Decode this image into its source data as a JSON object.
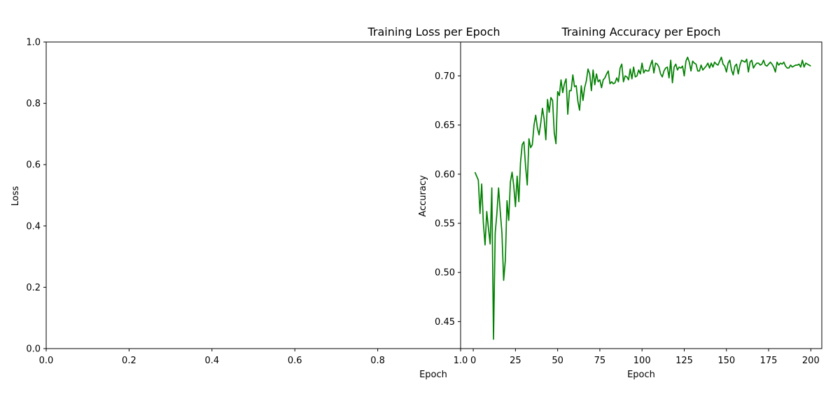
{
  "chart_data": [
    {
      "type": "line",
      "title": "Training Loss per Epoch",
      "xlabel": "Epoch",
      "ylabel": "Loss",
      "xlim": [
        0,
        1
      ],
      "ylim": [
        0,
        1
      ],
      "xticks": [
        "0.0",
        "0.2",
        "0.4",
        "0.6",
        "0.8",
        "1.0"
      ],
      "yticks": [
        "0.0",
        "0.2",
        "0.4",
        "0.6",
        "0.8",
        "1.0"
      ],
      "series": [],
      "grid": false
    },
    {
      "type": "line",
      "title": "Training Accuracy per Epoch",
      "xlabel": "Epoch",
      "ylabel": "Accuracy",
      "xlim": [
        -7.5,
        206.5
      ],
      "ylim": [
        0.4225,
        0.7345
      ],
      "xticks": [
        "0",
        "25",
        "50",
        "75",
        "100",
        "125",
        "150",
        "175",
        "200"
      ],
      "yticks": [
        "0.45",
        "0.50",
        "0.55",
        "0.60",
        "0.65",
        "0.70"
      ],
      "grid": false,
      "series": [
        {
          "color": "#008000",
          "x": [
            1,
            2,
            3,
            4,
            5,
            6,
            7,
            8,
            9,
            10,
            11,
            12,
            13,
            14,
            15,
            16,
            17,
            18,
            19,
            20,
            21,
            22,
            23,
            24,
            25,
            26,
            27,
            28,
            29,
            30,
            31,
            32,
            33,
            34,
            35,
            36,
            37,
            38,
            39,
            40,
            41,
            42,
            43,
            44,
            45,
            46,
            47,
            48,
            49,
            50,
            51,
            52,
            53,
            54,
            55,
            56,
            57,
            58,
            59,
            60,
            61,
            62,
            63,
            64,
            65,
            66,
            67,
            68,
            69,
            70,
            71,
            72,
            73,
            74,
            75,
            76,
            77,
            78,
            79,
            80,
            81,
            82,
            83,
            84,
            85,
            86,
            87,
            88,
            89,
            90,
            91,
            92,
            93,
            94,
            95,
            96,
            97,
            98,
            99,
            100,
            101,
            102,
            103,
            104,
            105,
            106,
            107,
            108,
            109,
            110,
            111,
            112,
            113,
            114,
            115,
            116,
            117,
            118,
            119,
            120,
            121,
            122,
            123,
            124,
            125,
            126,
            127,
            128,
            129,
            130,
            131,
            132,
            133,
            134,
            135,
            136,
            137,
            138,
            139,
            140,
            141,
            142,
            143,
            144,
            145,
            146,
            147,
            148,
            149,
            150,
            151,
            152,
            153,
            154,
            155,
            156,
            157,
            158,
            159,
            160,
            161,
            162,
            163,
            164,
            165,
            166,
            167,
            168,
            169,
            170,
            171,
            172,
            173,
            174,
            175,
            176,
            177,
            178,
            179,
            180,
            181,
            182,
            183,
            184,
            185,
            186,
            187,
            188,
            189,
            190,
            191,
            192,
            193,
            194,
            195,
            196,
            197,
            198,
            199,
            200
          ],
          "y": [
            0.602,
            0.598,
            0.594,
            0.56,
            0.59,
            0.55,
            0.528,
            0.562,
            0.545,
            0.529,
            0.586,
            0.432,
            0.54,
            0.56,
            0.586,
            0.562,
            0.54,
            0.492,
            0.512,
            0.573,
            0.553,
            0.592,
            0.602,
            0.588,
            0.567,
            0.598,
            0.572,
            0.612,
            0.63,
            0.633,
            0.608,
            0.589,
            0.636,
            0.627,
            0.63,
            0.65,
            0.66,
            0.647,
            0.64,
            0.652,
            0.667,
            0.656,
            0.635,
            0.676,
            0.663,
            0.678,
            0.675,
            0.642,
            0.631,
            0.684,
            0.68,
            0.696,
            0.683,
            0.692,
            0.697,
            0.661,
            0.685,
            0.685,
            0.701,
            0.689,
            0.69,
            0.674,
            0.665,
            0.69,
            0.675,
            0.688,
            0.695,
            0.707,
            0.702,
            0.685,
            0.706,
            0.691,
            0.702,
            0.694,
            0.696,
            0.688,
            0.696,
            0.698,
            0.702,
            0.705,
            0.692,
            0.694,
            0.692,
            0.693,
            0.698,
            0.694,
            0.708,
            0.712,
            0.694,
            0.7,
            0.699,
            0.696,
            0.707,
            0.697,
            0.709,
            0.699,
            0.7,
            0.706,
            0.702,
            0.713,
            0.703,
            0.706,
            0.705,
            0.705,
            0.711,
            0.716,
            0.703,
            0.713,
            0.712,
            0.709,
            0.702,
            0.699,
            0.705,
            0.708,
            0.709,
            0.698,
            0.716,
            0.693,
            0.709,
            0.712,
            0.706,
            0.709,
            0.708,
            0.71,
            0.7,
            0.715,
            0.719,
            0.714,
            0.705,
            0.715,
            0.713,
            0.712,
            0.705,
            0.705,
            0.711,
            0.706,
            0.708,
            0.71,
            0.713,
            0.708,
            0.713,
            0.709,
            0.714,
            0.712,
            0.711,
            0.715,
            0.719,
            0.712,
            0.71,
            0.704,
            0.713,
            0.716,
            0.706,
            0.701,
            0.71,
            0.712,
            0.702,
            0.711,
            0.716,
            0.715,
            0.714,
            0.717,
            0.704,
            0.714,
            0.716,
            0.708,
            0.711,
            0.713,
            0.713,
            0.711,
            0.712,
            0.716,
            0.711,
            0.71,
            0.712,
            0.714,
            0.712,
            0.709,
            0.704,
            0.714,
            0.711,
            0.713,
            0.712,
            0.714,
            0.71,
            0.708,
            0.708,
            0.711,
            0.709,
            0.71,
            0.711,
            0.711,
            0.712,
            0.709,
            0.716,
            0.709,
            0.713,
            0.712,
            0.711,
            0.71
          ]
        }
      ]
    }
  ]
}
